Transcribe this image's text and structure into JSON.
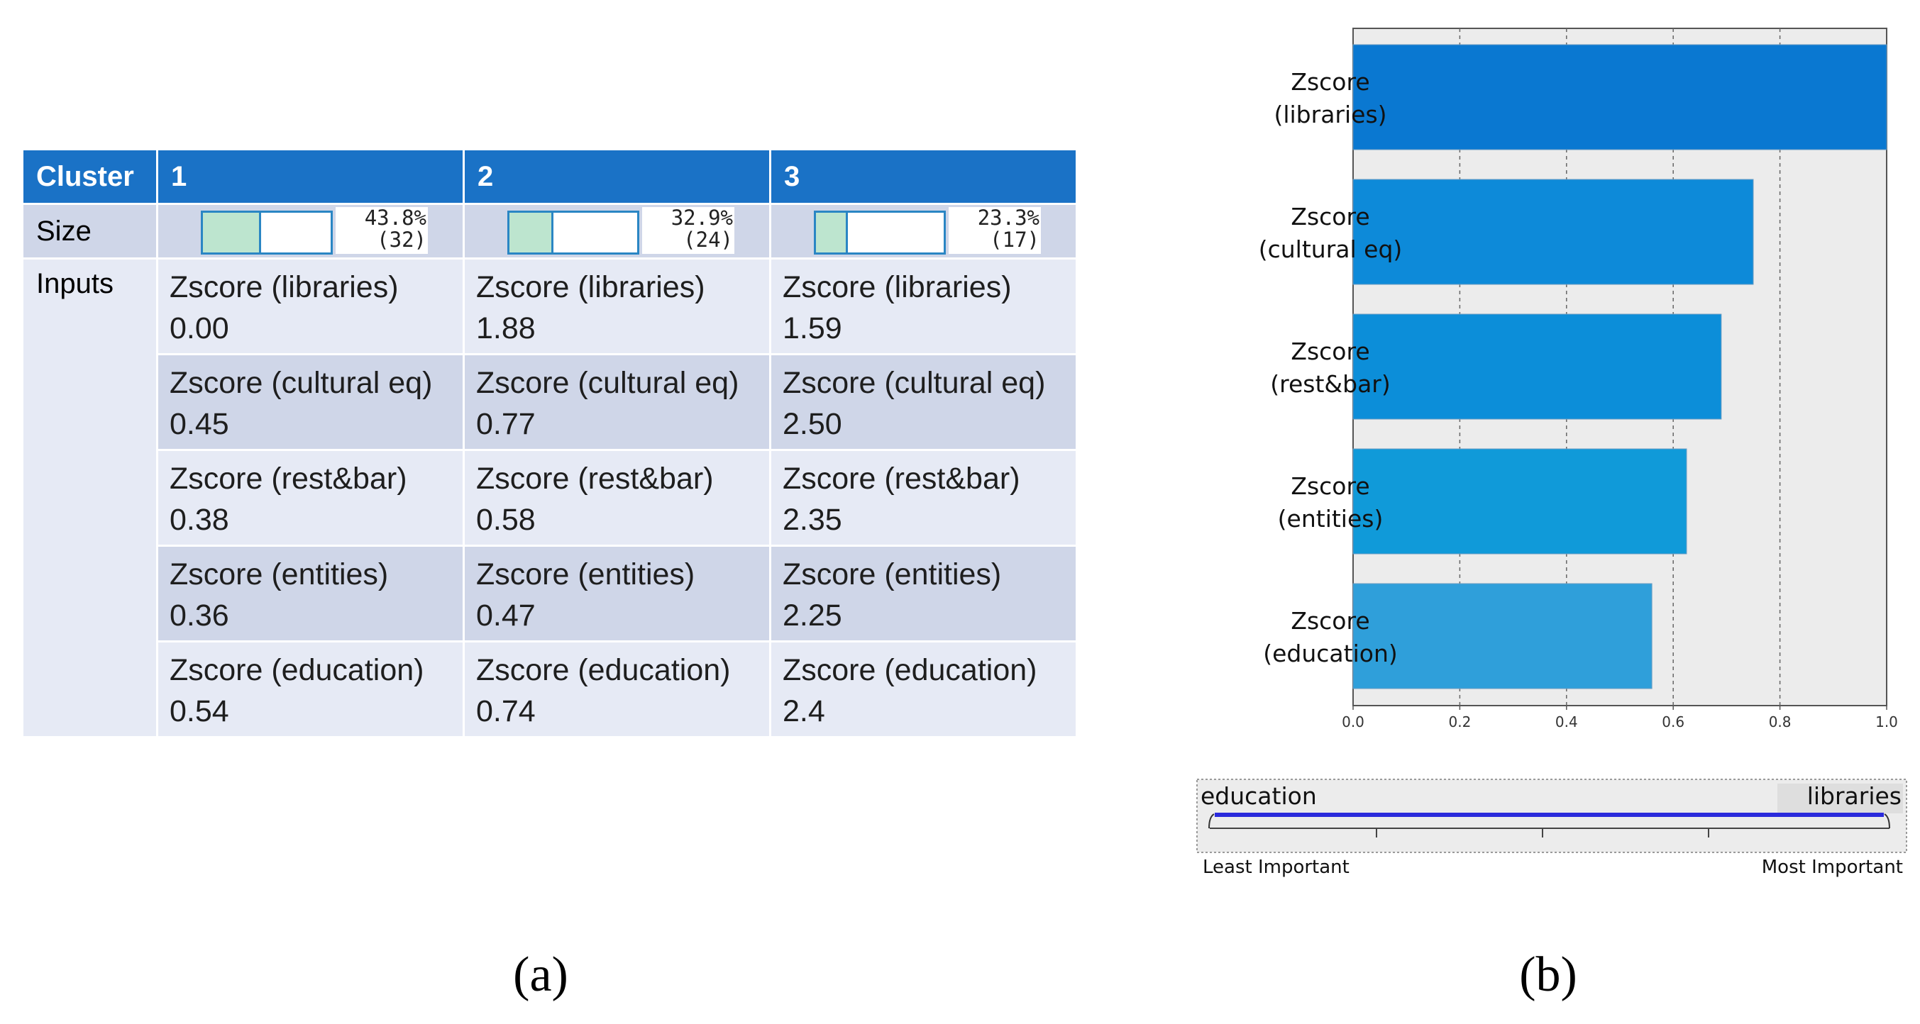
{
  "table": {
    "header": {
      "label": "Cluster",
      "clusters": [
        "1",
        "2",
        "3"
      ]
    },
    "size": {
      "label": "Size",
      "items": [
        {
          "percent": "43.8%",
          "count": "(32)",
          "fraction": 0.438
        },
        {
          "percent": "32.9%",
          "count": "(24)",
          "fraction": 0.329
        },
        {
          "percent": "23.3%",
          "count": "(17)",
          "fraction": 0.233
        }
      ]
    },
    "inputs_label": "Inputs",
    "rows": [
      {
        "name": "Zscore (libraries)",
        "values": [
          "0.00",
          "1.88",
          "1.59"
        ]
      },
      {
        "name": "Zscore (cultural eq)",
        "values": [
          "0.45",
          "0.77",
          "2.50"
        ]
      },
      {
        "name": "Zscore (rest&bar)",
        "values": [
          "0.38",
          "0.58",
          "2.35"
        ]
      },
      {
        "name": "Zscore (entities)",
        "values": [
          "0.36",
          "0.47",
          "2.25"
        ]
      },
      {
        "name": "Zscore (education)",
        "values": [
          "0.54",
          "0.74",
          "2.4"
        ]
      }
    ]
  },
  "chart_data": {
    "type": "bar",
    "orientation": "horizontal",
    "categories": [
      [
        "Zscore",
        "(libraries)"
      ],
      [
        "Zscore",
        "(cultural eq)"
      ],
      [
        "Zscore",
        "(rest&bar)"
      ],
      [
        "Zscore",
        "(entities)"
      ],
      [
        "Zscore",
        "(education)"
      ]
    ],
    "values": [
      1.0,
      0.75,
      0.69,
      0.625,
      0.56
    ],
    "colors": [
      "#0a78d1",
      "#0d8ad9",
      "#0c8ed9",
      "#109ad9",
      "#2f9fda"
    ],
    "xlim": [
      0,
      1
    ],
    "xticks": [
      "0.0",
      "0.2",
      "0.4",
      "0.6",
      "0.8",
      "1.0"
    ],
    "grid": "vertical dashed",
    "legend": {
      "left": "education",
      "right": "libraries",
      "least": "Least Important",
      "most": "Most Important"
    }
  },
  "captions": {
    "a": "(a)",
    "b": "(b)"
  }
}
